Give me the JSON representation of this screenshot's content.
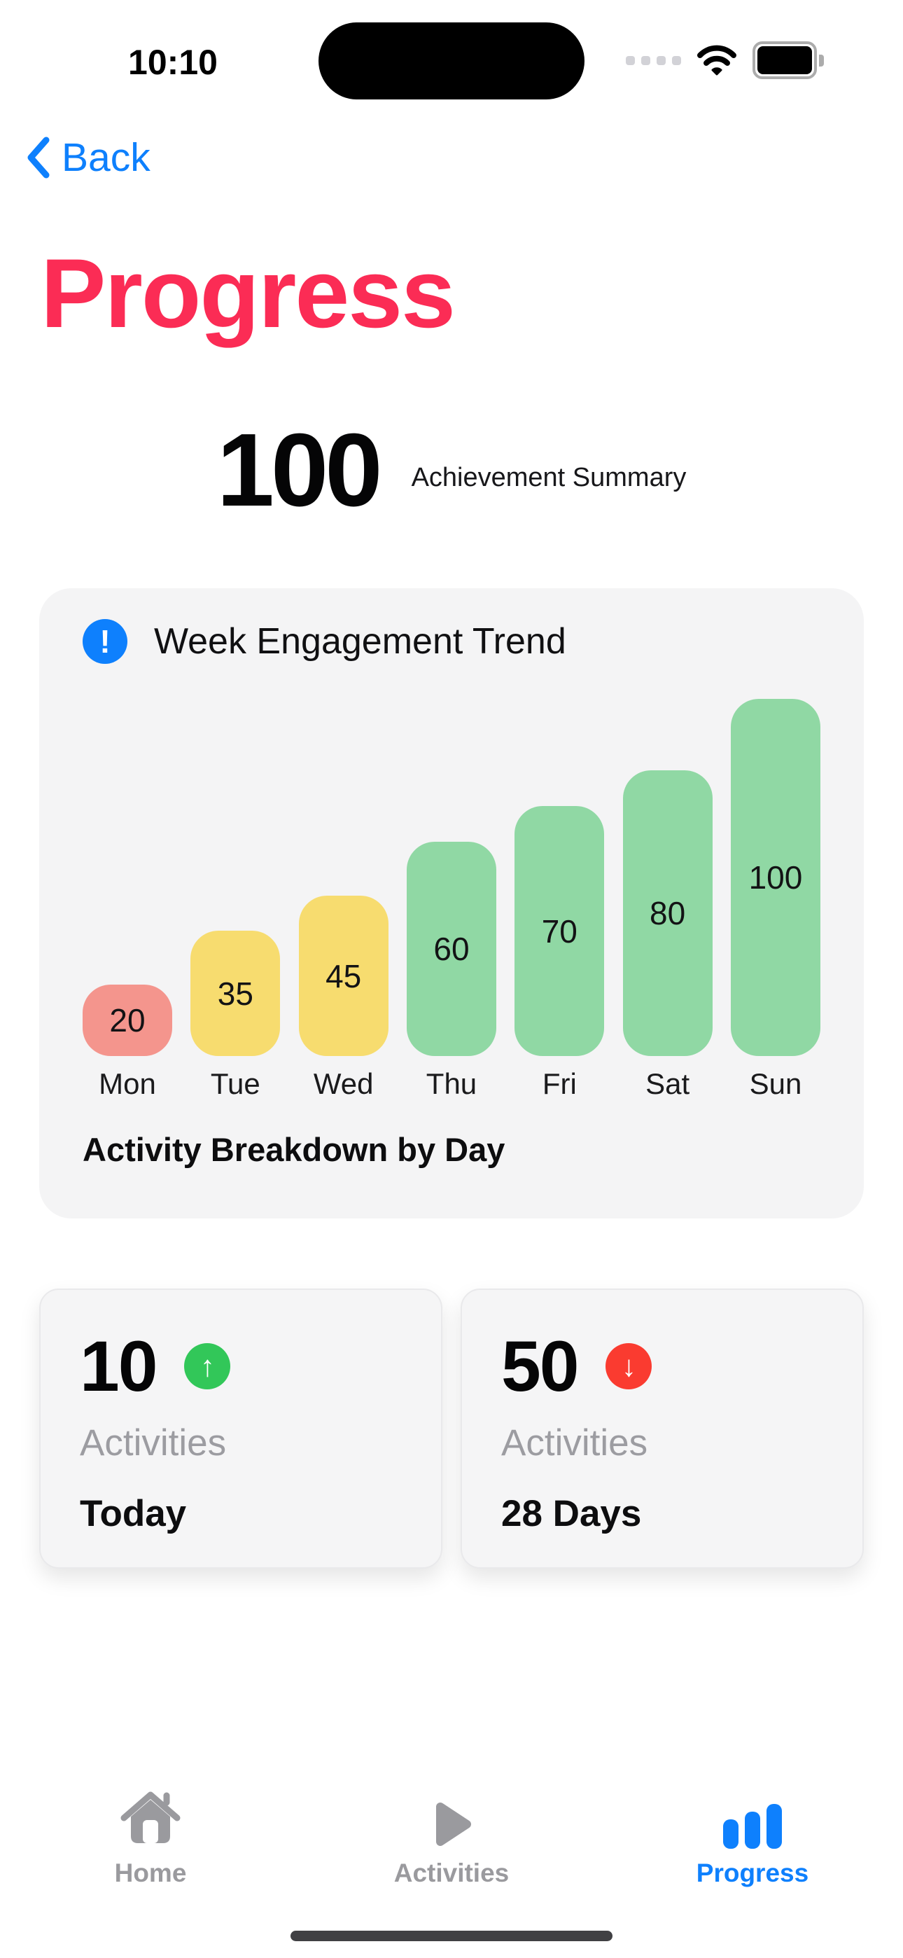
{
  "status_bar": {
    "time": "10:10"
  },
  "nav": {
    "back_label": "Back"
  },
  "page": {
    "title": "Progress"
  },
  "summary": {
    "value": "100",
    "label": "Achievement Summary"
  },
  "chart_card": {
    "title": "Week Engagement Trend",
    "footer": "Activity Breakdown by Day",
    "info_icon_glyph": "!"
  },
  "chart_data": {
    "type": "bar",
    "title": "Week Engagement Trend",
    "caption": "Activity Breakdown by Day",
    "categories": [
      "Mon",
      "Tue",
      "Wed",
      "Thu",
      "Fri",
      "Sat",
      "Sun"
    ],
    "values": [
      20,
      35,
      45,
      60,
      70,
      80,
      100
    ],
    "bar_colors": [
      "#F4958D",
      "#F7DC6F",
      "#F7DC6F",
      "#90D8A4",
      "#90D8A4",
      "#90D8A4",
      "#90D8A4"
    ],
    "value_labels_shown": true,
    "ylim": [
      0,
      100
    ],
    "grid": false,
    "legend": "none"
  },
  "stat_cards": [
    {
      "value": "10",
      "trend": "up",
      "arrow_glyph": "↑",
      "trend_color": "#32C759",
      "label": "Activities",
      "period": "Today"
    },
    {
      "value": "50",
      "trend": "down",
      "arrow_glyph": "↓",
      "trend_color": "#FA3B30",
      "label": "Activities",
      "period": "28 Days"
    }
  ],
  "tab_bar": {
    "items": [
      {
        "label": "Home",
        "icon": "home-icon",
        "active": false
      },
      {
        "label": "Activities",
        "icon": "play-icon",
        "active": false
      },
      {
        "label": "Progress",
        "icon": "bar-chart-icon",
        "active": true
      }
    ]
  },
  "colors": {
    "accent_blue": "#0E80FD",
    "title_pink": "#FB2C55",
    "bar_salmon": "#F4958D",
    "bar_yellow": "#F7DC6F",
    "bar_green": "#90D8A4",
    "trend_up_green": "#32C759",
    "trend_down_red": "#FA3B30",
    "card_background": "#F4F4F5",
    "muted_gray_text": "#9C9CA1",
    "tab_inactive_gray": "#9A9A9E"
  }
}
